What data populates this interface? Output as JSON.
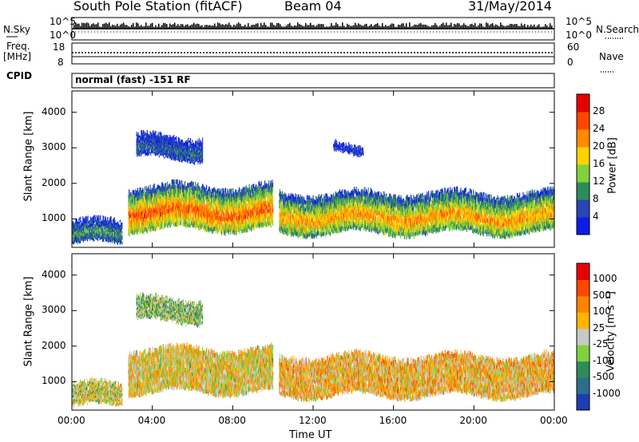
{
  "header": {
    "station": "South Pole Station (fitACF)",
    "beam": "Beam 04",
    "date": "31/May/2014"
  },
  "top_panels": {
    "nsky_label": "N.Sky",
    "nsearch_label": "N.Search",
    "noise_ticks_left": [
      "10^5",
      "10^0"
    ],
    "noise_ticks_right": [
      "10^5",
      "10^0"
    ],
    "freq_label_1": "Freq.",
    "freq_label_2": "[MHz]",
    "freq_ticks": [
      "18",
      "8"
    ],
    "nave_label": "Nave",
    "nave_ticks": [
      "60",
      "0"
    ],
    "cpid_label": "CPID",
    "cpid_value": "normal (fast) -151 RF"
  },
  "chart_data": [
    {
      "type": "heatmap",
      "name": "power",
      "ylabel": "Slant Range [km]",
      "xlabel": "Time UT",
      "x_ticks": [
        "00:00",
        "04:00",
        "08:00",
        "12:00",
        "16:00",
        "20:00",
        "00:00"
      ],
      "y_ticks": [
        "1000",
        "2000",
        "3000",
        "4000"
      ],
      "ylim": [
        200,
        4600
      ],
      "xlim_hours": [
        0,
        24
      ],
      "colorbar_label": "Power [dB]",
      "colorbar_ticks": [
        "4",
        "8",
        "12",
        "16",
        "20",
        "24",
        "28"
      ],
      "colorbar_colors": [
        "#0a1ee6",
        "#2846b4",
        "#2e8c5a",
        "#7fd23c",
        "#ffd200",
        "#ff8c00",
        "#ff4600",
        "#e60000"
      ],
      "bands": [
        {
          "t0": 0.0,
          "t1": 2.5,
          "lo": 300,
          "hi": 900,
          "level": 0.35
        },
        {
          "t0": 2.8,
          "t1": 10.0,
          "lo": 700,
          "hi": 1900,
          "level": 0.8
        },
        {
          "t0": 10.3,
          "t1": 24.0,
          "lo": 600,
          "hi": 1700,
          "level": 0.7
        },
        {
          "t0": 3.2,
          "t1": 6.5,
          "lo": 2700,
          "hi": 3300,
          "level": 0.25
        },
        {
          "t0": 13.0,
          "t1": 14.5,
          "lo": 2850,
          "hi": 3050,
          "level": 0.15
        }
      ]
    },
    {
      "type": "heatmap",
      "name": "velocity",
      "ylabel": "Slant Range [km]",
      "xlabel": "Time UT",
      "x_ticks": [
        "00:00",
        "04:00",
        "08:00",
        "12:00",
        "16:00",
        "20:00",
        "00:00"
      ],
      "y_ticks": [
        "1000",
        "2000",
        "3000",
        "4000"
      ],
      "ylim": [
        200,
        4600
      ],
      "xlim_hours": [
        0,
        24
      ],
      "colorbar_label": "Velocity [m s⁻¹]",
      "colorbar_ticks": [
        "1000",
        "500",
        "100",
        "25",
        "-25",
        "-100",
        "-500",
        "-1000"
      ],
      "colorbar_colors": [
        "#1e3cb4",
        "#2d6e8c",
        "#2e8c5a",
        "#7fd23c",
        "#c8c8c8",
        "#ffb400",
        "#ff8200",
        "#ff4600",
        "#e60000"
      ],
      "bands": [
        {
          "t0": 0.0,
          "t1": 2.5,
          "lo": 300,
          "hi": 900,
          "level": 0.5
        },
        {
          "t0": 2.8,
          "t1": 10.0,
          "lo": 700,
          "hi": 1900,
          "level": 0.55
        },
        {
          "t0": 10.3,
          "t1": 24.0,
          "lo": 600,
          "hi": 1700,
          "level": 0.6
        },
        {
          "t0": 3.2,
          "t1": 6.5,
          "lo": 2700,
          "hi": 3300,
          "level": 0.4
        }
      ]
    }
  ]
}
